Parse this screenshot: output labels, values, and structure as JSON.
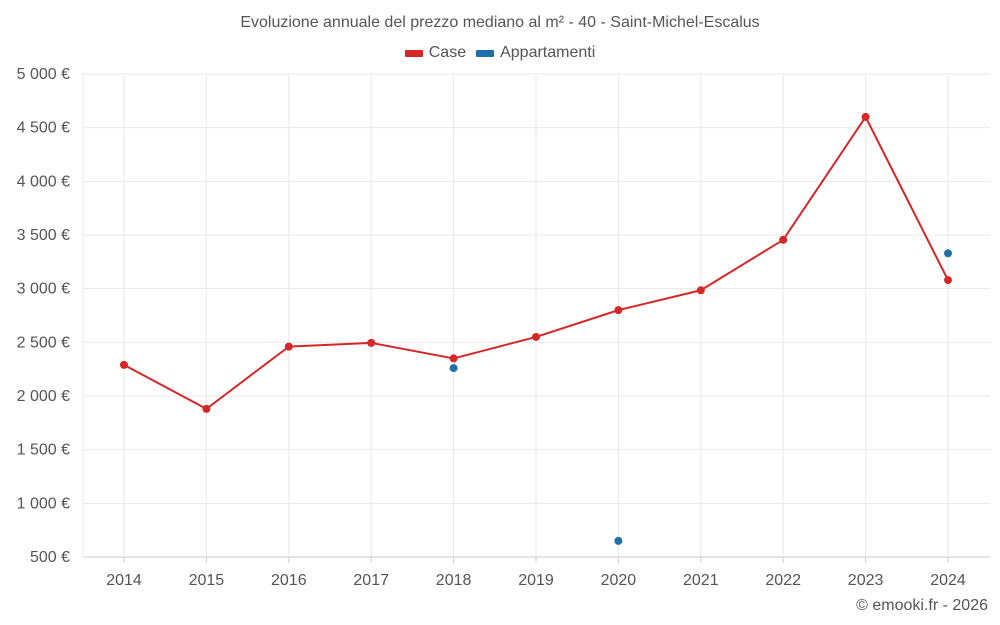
{
  "colors": {
    "case": "#d62728",
    "appartamenti": "#1f6fa8",
    "grid": "#e9e9e9",
    "axis": "#cccccc"
  },
  "chart_data": {
    "type": "line",
    "title": "Evoluzione annuale del prezzo mediano al m² - 40 - Saint-Michel-Escalus",
    "categories": [
      "2014",
      "2015",
      "2016",
      "2017",
      "2018",
      "2019",
      "2020",
      "2021",
      "2022",
      "2023",
      "2024"
    ],
    "series": [
      {
        "name": "Case",
        "style": "line+markers",
        "values": [
          2290,
          1880,
          2460,
          2495,
          2350,
          2550,
          2800,
          2985,
          3455,
          4600,
          3080
        ]
      },
      {
        "name": "Appartamenti",
        "style": "markers",
        "values": [
          null,
          null,
          null,
          null,
          2260,
          null,
          650,
          null,
          null,
          null,
          3330
        ]
      }
    ],
    "ylim": [
      500,
      5000
    ],
    "yticks": [
      500,
      1000,
      1500,
      2000,
      2500,
      3000,
      3500,
      4000,
      4500,
      5000
    ],
    "ytick_labels": [
      "500 €",
      "1 000 €",
      "1 500 €",
      "2 000 €",
      "2 500 €",
      "3 000 €",
      "3 500 €",
      "4 000 €",
      "4 500 €",
      "5 000 €"
    ],
    "xlabel": "",
    "ylabel": "",
    "legend": "top-center",
    "grid": true
  },
  "credit": "© emooki.fr - 2026"
}
